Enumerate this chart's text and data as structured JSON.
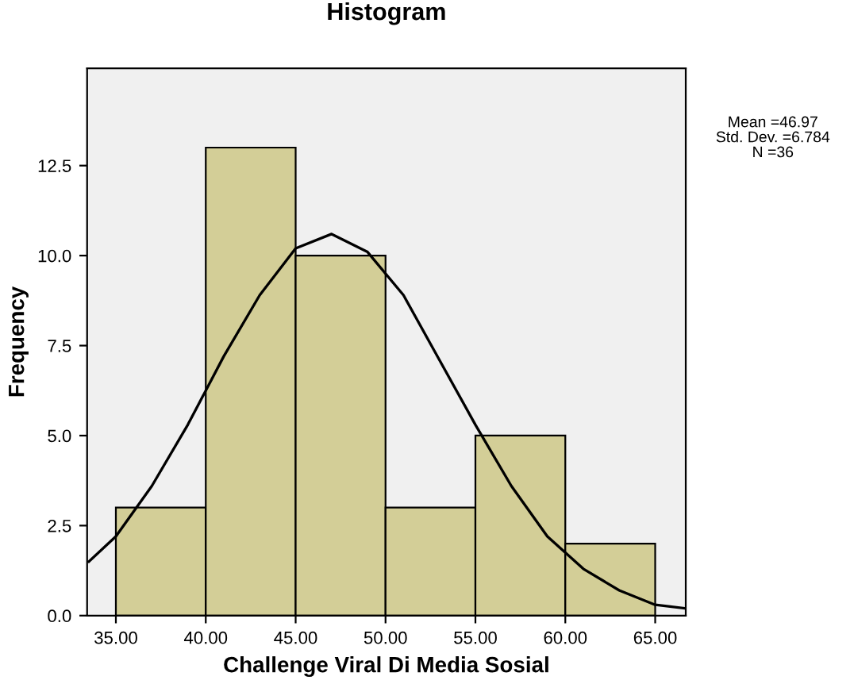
{
  "chart_data": {
    "type": "histogram",
    "title": "Histogram",
    "xlabel": "Challenge Viral Di Media Sosial",
    "ylabel": "Frequency",
    "bins": [
      35,
      40,
      45,
      50,
      55,
      60,
      65
    ],
    "values": [
      3,
      13,
      10,
      3,
      5,
      2
    ],
    "color": "#d3ce97",
    "series": [
      {
        "type": "line",
        "color": "#000000",
        "x": [
          33.5,
          35,
          37,
          39,
          41,
          43,
          45,
          47,
          49,
          51,
          53,
          55,
          57,
          59,
          61,
          63,
          65,
          66.7
        ],
        "values": [
          1.5,
          2.2,
          3.6,
          5.3,
          7.2,
          8.9,
          10.2,
          10.6,
          10.1,
          8.9,
          7.1,
          5.3,
          3.6,
          2.2,
          1.3,
          0.7,
          0.3,
          0.2
        ]
      }
    ],
    "xlim": [
      33.4,
      66.7
    ],
    "ylim": [
      0,
      15.2
    ],
    "xticks": [
      {
        "value": 35,
        "label": "35.00"
      },
      {
        "value": 40,
        "label": "40.00"
      },
      {
        "value": 45,
        "label": "45.00"
      },
      {
        "value": 50,
        "label": "50.00"
      },
      {
        "value": 55,
        "label": "55.00"
      },
      {
        "value": 60,
        "label": "60.00"
      },
      {
        "value": 65,
        "label": "65.00"
      }
    ],
    "yticks": [
      {
        "value": 0,
        "label": "0.0"
      },
      {
        "value": 2.5,
        "label": "2.5"
      },
      {
        "value": 5,
        "label": "5.0"
      },
      {
        "value": 7.5,
        "label": "7.5"
      },
      {
        "value": 10,
        "label": "10.0"
      },
      {
        "value": 12.5,
        "label": "12.5"
      }
    ],
    "annotations": [
      "Mean =46.97",
      "Std. Dev. =6.784",
      "N =36"
    ]
  }
}
